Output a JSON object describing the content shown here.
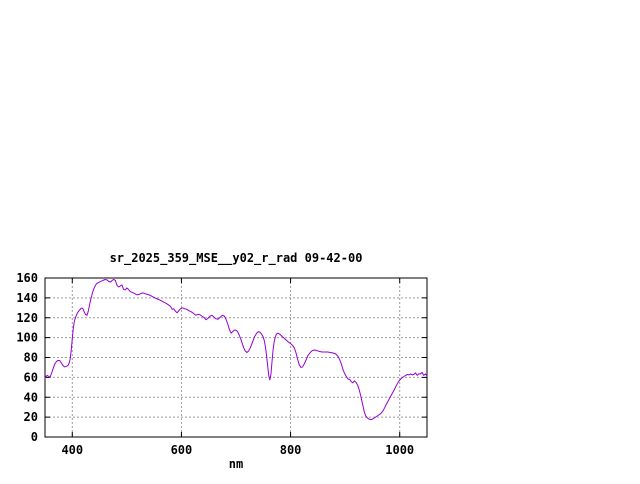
{
  "chart_data": {
    "type": "line",
    "title": "sr_2025_359_MSE__y02_r_rad 09-42-00",
    "xlabel": "nm",
    "ylabel": "",
    "xlim": [
      350,
      1050
    ],
    "ylim": [
      0,
      160
    ],
    "x_ticks": [
      400,
      600,
      800,
      1000
    ],
    "y_ticks": [
      0,
      20,
      40,
      60,
      80,
      100,
      120,
      140,
      160
    ],
    "grid": true,
    "legend": "none",
    "colors": {
      "line": "#9400d3",
      "grid": "#9c9c9c",
      "frame": "#000000",
      "background": "#ffffff"
    },
    "series": [
      {
        "x": [
          350,
          352,
          354,
          357,
          359,
          362,
          365,
          368,
          371,
          374,
          377,
          380,
          383,
          386,
          389,
          392,
          394,
          396,
          398,
          400,
          402,
          404,
          407,
          410,
          413,
          416,
          419,
          421,
          424,
          427,
          429,
          432,
          435,
          438,
          441,
          444,
          448,
          452,
          456,
          460,
          464,
          467,
          470,
          473,
          476,
          479,
          482,
          485,
          488,
          491,
          494,
          497,
          500,
          503,
          506,
          510,
          514,
          518,
          522,
          526,
          530,
          534,
          538,
          543,
          548,
          553,
          558,
          563,
          568,
          572,
          576,
          580,
          583,
          586,
          589,
          592,
          595,
          598,
          602,
          606,
          610,
          614,
          618,
          622,
          626,
          630,
          634,
          638,
          642,
          645,
          648,
          652,
          656,
          660,
          663,
          667,
          671,
          675,
          679,
          682,
          685,
          688,
          691,
          694,
          697,
          700,
          703,
          706,
          710,
          714,
          717,
          720,
          723,
          726,
          730,
          734,
          738,
          741,
          744,
          747,
          750,
          752,
          754,
          756,
          758,
          760,
          762,
          764,
          766,
          768,
          770,
          772,
          774,
          777,
          780,
          784,
          788,
          792,
          796,
          800,
          804,
          807,
          810,
          813,
          816,
          819,
          822,
          825,
          828,
          832,
          836,
          840,
          844,
          848,
          853,
          858,
          863,
          868,
          873,
          878,
          883,
          887,
          890,
          893,
          896,
          899,
          902,
          905,
          908,
          911,
          914,
          917,
          920,
          923,
          926,
          929,
          932,
          935,
          938,
          941,
          944,
          947,
          950,
          953,
          957,
          961,
          965,
          969,
          972,
          975,
          978,
          981,
          984,
          987,
          990,
          993,
          996,
          999,
          1002,
          1005,
          1008,
          1011,
          1014,
          1017,
          1020,
          1023,
          1026,
          1029,
          1032,
          1035,
          1038,
          1041,
          1044,
          1047,
          1050
        ],
        "y": [
          59,
          61,
          62,
          61,
          60,
          64,
          69,
          73.5,
          76,
          77,
          77,
          74.5,
          72,
          70.5,
          71,
          72,
          74,
          78,
          87,
          99,
          110,
          117,
          122,
          125.5,
          127.5,
          129.5,
          129.5,
          127,
          123.5,
          122.5,
          126,
          134,
          141,
          147,
          151,
          154,
          155.5,
          156.5,
          157.5,
          158.5,
          158,
          156.5,
          156,
          157.5,
          158.5,
          157.5,
          152.5,
          151,
          152,
          153,
          148.5,
          148,
          150,
          148.5,
          146.5,
          145.5,
          144.5,
          143,
          143.5,
          144.5,
          145,
          144,
          143.5,
          142.5,
          141,
          139.5,
          138.5,
          137,
          135.5,
          134.5,
          133,
          131.5,
          128.5,
          129,
          126.5,
          125,
          127,
          129,
          130,
          129,
          128.5,
          127,
          126,
          124.5,
          122.5,
          123.5,
          123,
          121.5,
          120,
          118,
          119,
          121.5,
          122.5,
          120.5,
          119,
          118.5,
          120.5,
          122.5,
          121.5,
          118,
          113.5,
          108,
          104.5,
          106,
          107.5,
          107.5,
          106,
          102.5,
          96.5,
          90,
          86.5,
          85,
          86.5,
          89.5,
          95,
          101,
          104.5,
          106,
          105.5,
          103.5,
          100.5,
          96.5,
          90.5,
          82,
          72,
          62,
          57.5,
          63,
          76,
          88,
          96,
          100.5,
          103.5,
          104.5,
          103.5,
          101.5,
          99.5,
          97.5,
          95.5,
          94,
          92,
          89.5,
          84.5,
          78,
          72.5,
          70,
          70.5,
          73.5,
          77,
          82,
          85,
          87,
          87.5,
          87,
          86,
          85.5,
          85.5,
          85.5,
          85,
          84.5,
          83.5,
          81,
          78,
          73.5,
          68,
          64,
          61,
          58.5,
          58,
          56,
          54.5,
          56.5,
          55,
          52,
          47,
          40.5,
          33,
          25.5,
          21,
          19,
          18,
          17.5,
          18,
          19,
          20.5,
          22,
          23.5,
          26,
          29,
          32.5,
          35.5,
          38.5,
          41.5,
          44.5,
          47.5,
          51,
          54,
          56.5,
          58.5,
          60,
          61,
          62,
          63,
          62.5,
          63.5,
          62.5,
          63,
          64.5,
          62,
          63.5,
          63.5,
          65,
          62,
          63.5,
          61.5
        ]
      }
    ]
  }
}
